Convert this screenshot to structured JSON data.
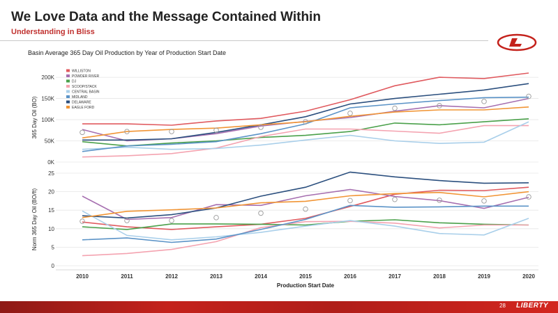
{
  "slide": {
    "title": "We Love Data and the Message Contained Within",
    "subtitle": "Understanding in Bliss",
    "page_number": "28",
    "brand": "LIBERTY"
  },
  "colors": {
    "WILLISTON": "#e05a5f",
    "POWDER RIVER": "#a66fb0",
    "DJ": "#4aa04a",
    "SCOOP/STACK": "#f4a3b0",
    "CENTRAL BASIN": "#a9cfea",
    "MIDLAND": "#5b93c7",
    "DELAWARE": "#2b4f7e",
    "EAGLE FORD": "#f19535",
    "average_marker": "#999999",
    "accent": "#c4221c"
  },
  "chart_data": [
    {
      "type": "line",
      "title": "Basin Average 365 Day Oil Production by Year of Production Start Date",
      "xlabel": "",
      "ylabel": "365 Day Oil (BO)",
      "ylim": [
        0,
        210000
      ],
      "yticks": [
        0,
        50000,
        100000,
        150000,
        200000
      ],
      "ytick_labels": [
        "0K",
        "50K",
        "100K",
        "150K",
        "200K"
      ],
      "grid": true,
      "legend": "top-left",
      "x": [
        2010,
        2011,
        2012,
        2013,
        2014,
        2015,
        2016,
        2017,
        2018,
        2019,
        2020
      ],
      "series": [
        {
          "name": "WILLISTON",
          "values": [
            90000,
            90000,
            87000,
            97000,
            103000,
            120000,
            147000,
            180000,
            200000,
            197000,
            210000
          ]
        },
        {
          "name": "POWDER RIVER",
          "values": [
            77000,
            50000,
            55000,
            67000,
            85000,
            96000,
            105000,
            120000,
            133000,
            128000,
            150000
          ]
        },
        {
          "name": "DJ",
          "values": [
            48000,
            38000,
            45000,
            50000,
            58000,
            63000,
            72000,
            92000,
            88000,
            95000,
            102000
          ]
        },
        {
          "name": "SCOOP/STACK",
          "values": [
            12000,
            15000,
            20000,
            33000,
            60000,
            78000,
            78000,
            73000,
            68000,
            86000,
            86000
          ]
        },
        {
          "name": "CENTRAL BASIN",
          "values": [
            30000,
            35000,
            30000,
            32000,
            40000,
            52000,
            63000,
            50000,
            44000,
            47000,
            95000
          ]
        },
        {
          "name": "MIDLAND",
          "values": [
            25000,
            38000,
            42000,
            48000,
            67000,
            90000,
            128000,
            137000,
            145000,
            152000,
            153000
          ]
        },
        {
          "name": "DELAWARE",
          "values": [
            52000,
            52000,
            55000,
            70000,
            88000,
            107000,
            137000,
            150000,
            160000,
            170000,
            185000
          ]
        },
        {
          "name": "EAGLE FORD",
          "values": [
            57000,
            72000,
            77000,
            80000,
            88000,
            95000,
            108000,
            118000,
            123000,
            123000,
            130000
          ]
        }
      ],
      "average_markers": [
        70000,
        72000,
        72000,
        75000,
        82000,
        95000,
        115000,
        127000,
        133000,
        143000,
        155000
      ]
    },
    {
      "type": "line",
      "title": "",
      "xlabel": "Production Start Date",
      "ylabel": "Norm 365 Day Oil (BO/ft)",
      "ylim": [
        0,
        25
      ],
      "yticks": [
        0,
        5,
        10,
        15,
        20,
        25
      ],
      "ytick_labels": [
        "0",
        "5",
        "10",
        "15",
        "20",
        "25"
      ],
      "xtick_labels": [
        "2010",
        "2011",
        "2012",
        "2013",
        "2014",
        "2015",
        "2016",
        "2017",
        "2018",
        "2019",
        "2020"
      ],
      "grid": true,
      "x": [
        2010,
        2011,
        2012,
        2013,
        2014,
        2015,
        2016,
        2017,
        2018,
        2019,
        2020
      ],
      "series": [
        {
          "name": "WILLISTON",
          "values": [
            11.8,
            10.5,
            9.8,
            10.5,
            11.2,
            12.8,
            16.0,
            19.3,
            20.4,
            20.3,
            21.2
          ]
        },
        {
          "name": "POWDER RIVER",
          "values": [
            18.8,
            12.5,
            13.0,
            16.5,
            16.3,
            18.9,
            20.6,
            18.7,
            17.6,
            15.5,
            18.5
          ]
        },
        {
          "name": "DJ",
          "values": [
            10.5,
            9.8,
            11.3,
            11.3,
            11.2,
            11.0,
            12.0,
            12.4,
            11.6,
            11.2,
            11.0
          ]
        },
        {
          "name": "SCOOP/STACK",
          "values": [
            2.7,
            3.3,
            4.4,
            6.5,
            10.3,
            11.9,
            12.0,
            11.5,
            10.2,
            11.0,
            11.0
          ]
        },
        {
          "name": "CENTRAL BASIN",
          "values": [
            14.8,
            8.2,
            7.0,
            7.8,
            9.0,
            10.7,
            12.2,
            10.7,
            8.7,
            8.3,
            12.8
          ]
        },
        {
          "name": "MIDLAND",
          "values": [
            7.0,
            7.5,
            6.3,
            7.2,
            9.8,
            12.5,
            16.3,
            15.8,
            15.9,
            16.1,
            16.1
          ]
        },
        {
          "name": "DELAWARE",
          "values": [
            13.5,
            12.9,
            13.8,
            15.6,
            18.8,
            21.2,
            25.3,
            24.0,
            23.0,
            22.3,
            22.4
          ]
        },
        {
          "name": "EAGLE FORD",
          "values": [
            13.0,
            14.7,
            15.1,
            15.6,
            17.0,
            17.4,
            18.9,
            19.5,
            19.8,
            18.6,
            20.0
          ]
        }
      ],
      "average_markers": [
        12.0,
        12.2,
        12.2,
        13.0,
        14.2,
        15.3,
        17.6,
        17.9,
        17.7,
        17.5,
        18.6
      ]
    }
  ]
}
